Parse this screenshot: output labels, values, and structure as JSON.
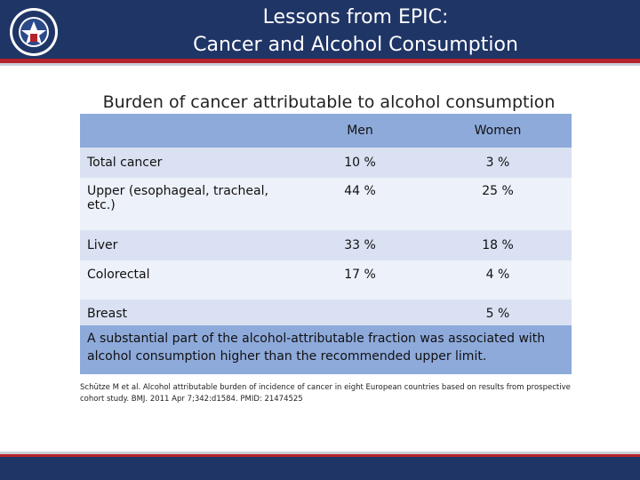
{
  "header": {
    "title_line1": "Lessons from EPIC:",
    "title_line2": "Cancer and Alcohol Consumption",
    "colors": {
      "bar": "#1f3566",
      "stripe": "#b5222a"
    },
    "logo_icon": "department-seal-icon"
  },
  "subtitle": "Burden of cancer attributable to alcohol consumption",
  "table": {
    "columns": [
      "",
      "Men",
      "Women"
    ],
    "rows": [
      {
        "label": "Total cancer",
        "men": "10 %",
        "women": "3 %"
      },
      {
        "label": "Upper (esophageal, tracheal, etc.)",
        "men": "44 %",
        "women": "25 %"
      },
      {
        "label": "Liver",
        "men": "33 %",
        "women": "18 %"
      },
      {
        "label": "Colorectal",
        "men": "17 %",
        "women": "4 %"
      },
      {
        "label": "Breast",
        "men": "",
        "women": "5 %"
      }
    ],
    "colors": {
      "header": "#8eaadb",
      "band_dark": "#d9e1f2",
      "band_light": "#edf1f9"
    }
  },
  "note": "A substantial part of the alcohol-attributable fraction was associated with alcohol consumption higher than the recommended upper limit.",
  "citation": "Schütze M et al. Alcohol attributable burden of incidence of cancer in eight European countries based on results from prospective cohort study. BMJ. 2011 Apr 7;342:d1584. PMID: 21474525"
}
